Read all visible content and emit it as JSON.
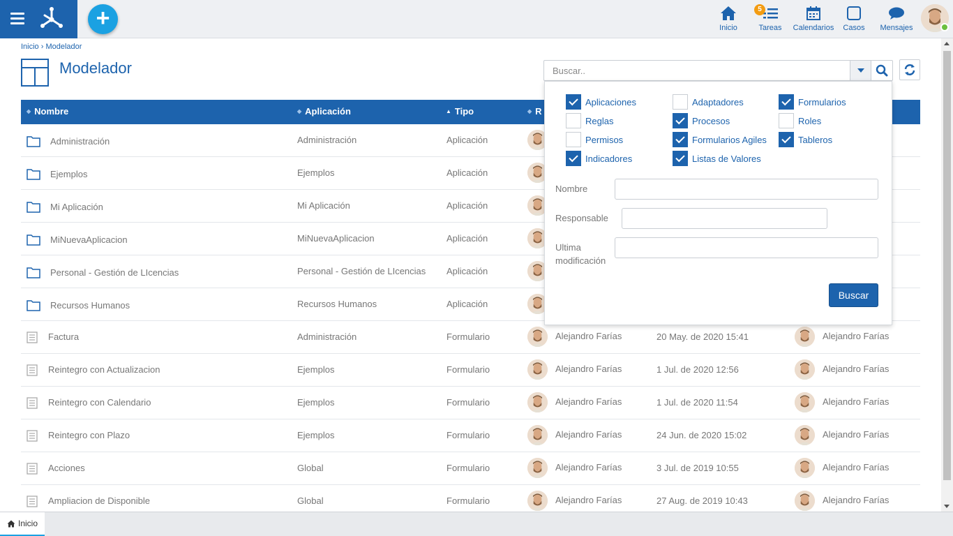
{
  "nav": {
    "items": [
      {
        "label": "Inicio",
        "icon": "home-icon"
      },
      {
        "label": "Tareas",
        "icon": "tasks-icon",
        "badge": "5"
      },
      {
        "label": "Calendarios",
        "icon": "calendar-icon"
      },
      {
        "label": "Casos",
        "icon": "case-icon"
      },
      {
        "label": "Mensajes",
        "icon": "message-icon"
      }
    ]
  },
  "breadcrumb": "Inicio › Modelador",
  "page": {
    "title": "Modelador"
  },
  "search": {
    "placeholder": "Buscar.."
  },
  "table": {
    "headers": [
      "Nombre",
      "Aplicación",
      "Tipo",
      "R"
    ],
    "rows": [
      {
        "nombre": "Administración",
        "aplicacion": "Administración",
        "tipo": "Aplicación",
        "kind": "folder"
      },
      {
        "nombre": "Ejemplos",
        "aplicacion": "Ejemplos",
        "tipo": "Aplicación",
        "kind": "folder"
      },
      {
        "nombre": "Mi Aplicación",
        "aplicacion": "Mi Aplicación",
        "tipo": "Aplicación",
        "kind": "folder"
      },
      {
        "nombre": "MiNuevaAplicacion",
        "aplicacion": "MiNuevaAplicacion",
        "tipo": "Aplicación",
        "kind": "folder"
      },
      {
        "nombre": "Personal - Gestión de LIcencias",
        "aplicacion": "Personal - Gestión de LIcencias",
        "tipo": "Aplicación",
        "kind": "folder"
      },
      {
        "nombre": "Recursos Humanos",
        "aplicacion": "Recursos Humanos",
        "tipo": "Aplicación",
        "kind": "folder"
      },
      {
        "nombre": "Factura",
        "aplicacion": "Administración",
        "tipo": "Formulario",
        "kind": "form",
        "responsable": "Alejandro Farías",
        "fecha": "20 May. de 2020 15:41",
        "modificado_por": "Alejandro Farías"
      },
      {
        "nombre": "Reintegro con Actualizacion",
        "aplicacion": "Ejemplos",
        "tipo": "Formulario",
        "kind": "form",
        "responsable": "Alejandro Farías",
        "fecha": "1 Jul. de 2020 12:56",
        "modificado_por": "Alejandro Farías"
      },
      {
        "nombre": "Reintegro con Calendario",
        "aplicacion": "Ejemplos",
        "tipo": "Formulario",
        "kind": "form",
        "responsable": "Alejandro Farías",
        "fecha": "1 Jul. de 2020 11:54",
        "modificado_por": "Alejandro Farías"
      },
      {
        "nombre": "Reintegro con Plazo",
        "aplicacion": "Ejemplos",
        "tipo": "Formulario",
        "kind": "form",
        "responsable": "Alejandro Farías",
        "fecha": "24 Jun. de 2020 15:02",
        "modificado_por": "Alejandro Farías"
      },
      {
        "nombre": "Acciones",
        "aplicacion": "Global",
        "tipo": "Formulario",
        "kind": "form",
        "responsable": "Alejandro Farías",
        "fecha": "3 Jul. de 2019 10:55",
        "modificado_por": "Alejandro Farías"
      },
      {
        "nombre": "Ampliacion de Disponible",
        "aplicacion": "Global",
        "tipo": "Formulario",
        "kind": "form",
        "responsable": "Alejandro Farías",
        "fecha": "27 Aug. de 2019 10:43",
        "modificado_por": "Alejandro Farías"
      }
    ]
  },
  "filter": {
    "checkboxes": [
      {
        "label": "Aplicaciones",
        "checked": true
      },
      {
        "label": "Adaptadores",
        "checked": false
      },
      {
        "label": "Formularios",
        "checked": true
      },
      {
        "label": "Reglas",
        "checked": false
      },
      {
        "label": "Procesos",
        "checked": true
      },
      {
        "label": "Roles",
        "checked": false
      },
      {
        "label": "Permisos",
        "checked": false
      },
      {
        "label": "Formularios Agiles",
        "checked": true
      },
      {
        "label": "Tableros",
        "checked": true
      },
      {
        "label": "Indicadores",
        "checked": true
      },
      {
        "label": "Listas de Valores",
        "checked": true
      }
    ],
    "fields": {
      "nombre": "Nombre",
      "responsable": "Responsable",
      "ultima_line1": "Ultima",
      "ultima_line2": "modificación"
    },
    "button": "Buscar"
  },
  "bottom": {
    "tab": "Inicio"
  },
  "colors": {
    "primary": "#1d63ad",
    "accent": "#1ba1e2",
    "badge": "#f39c12"
  }
}
